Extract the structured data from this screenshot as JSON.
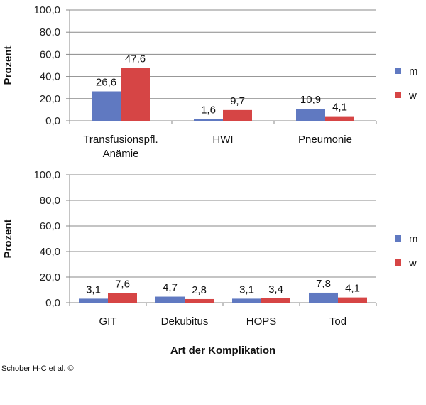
{
  "chart_data": [
    {
      "type": "bar",
      "categories": [
        "Transfusionspfl. Anämie",
        "HWI",
        "Pneumonie"
      ],
      "category_lines": [
        [
          "Transfusionspfl.",
          "Anämie"
        ],
        [
          "HWI"
        ],
        [
          "Pneumonie"
        ]
      ],
      "series": [
        {
          "name": "m",
          "color": "#6079C1",
          "values": [
            26.6,
            1.6,
            10.9
          ],
          "labels": [
            "26,6",
            "1,6",
            "10,9"
          ]
        },
        {
          "name": "w",
          "color": "#D64545",
          "values": [
            47.6,
            9.7,
            4.1
          ],
          "labels": [
            "47,6",
            "9,7",
            "4,1"
          ]
        }
      ],
      "ylabel": "Prozent",
      "ylim": [
        0,
        100
      ],
      "yticks": [
        "0,0",
        "20,0",
        "40,0",
        "60,0",
        "80,0",
        "100,0"
      ],
      "legend": "right",
      "grid": true
    },
    {
      "type": "bar",
      "categories": [
        "GIT",
        "Dekubitus",
        "HOPS",
        "Tod"
      ],
      "category_lines": [
        [
          "GIT"
        ],
        [
          "Dekubitus"
        ],
        [
          "HOPS"
        ],
        [
          "Tod"
        ]
      ],
      "series": [
        {
          "name": "m",
          "color": "#6079C1",
          "values": [
            3.1,
            4.7,
            3.1,
            7.8
          ],
          "labels": [
            "3,1",
            "4,7",
            "3,1",
            "7,8"
          ]
        },
        {
          "name": "w",
          "color": "#D64545",
          "values": [
            7.6,
            2.8,
            3.4,
            4.1
          ],
          "labels": [
            "7,6",
            "2,8",
            "3,4",
            "4,1"
          ]
        }
      ],
      "ylabel": "Prozent",
      "xlabel": "Art der Komplikation",
      "ylim": [
        0,
        100
      ],
      "yticks": [
        "0,0",
        "20,0",
        "40,0",
        "60,0",
        "80,0",
        "100,0"
      ],
      "legend": "right",
      "grid": true
    }
  ],
  "credit": "Schober H-C et al. ©"
}
